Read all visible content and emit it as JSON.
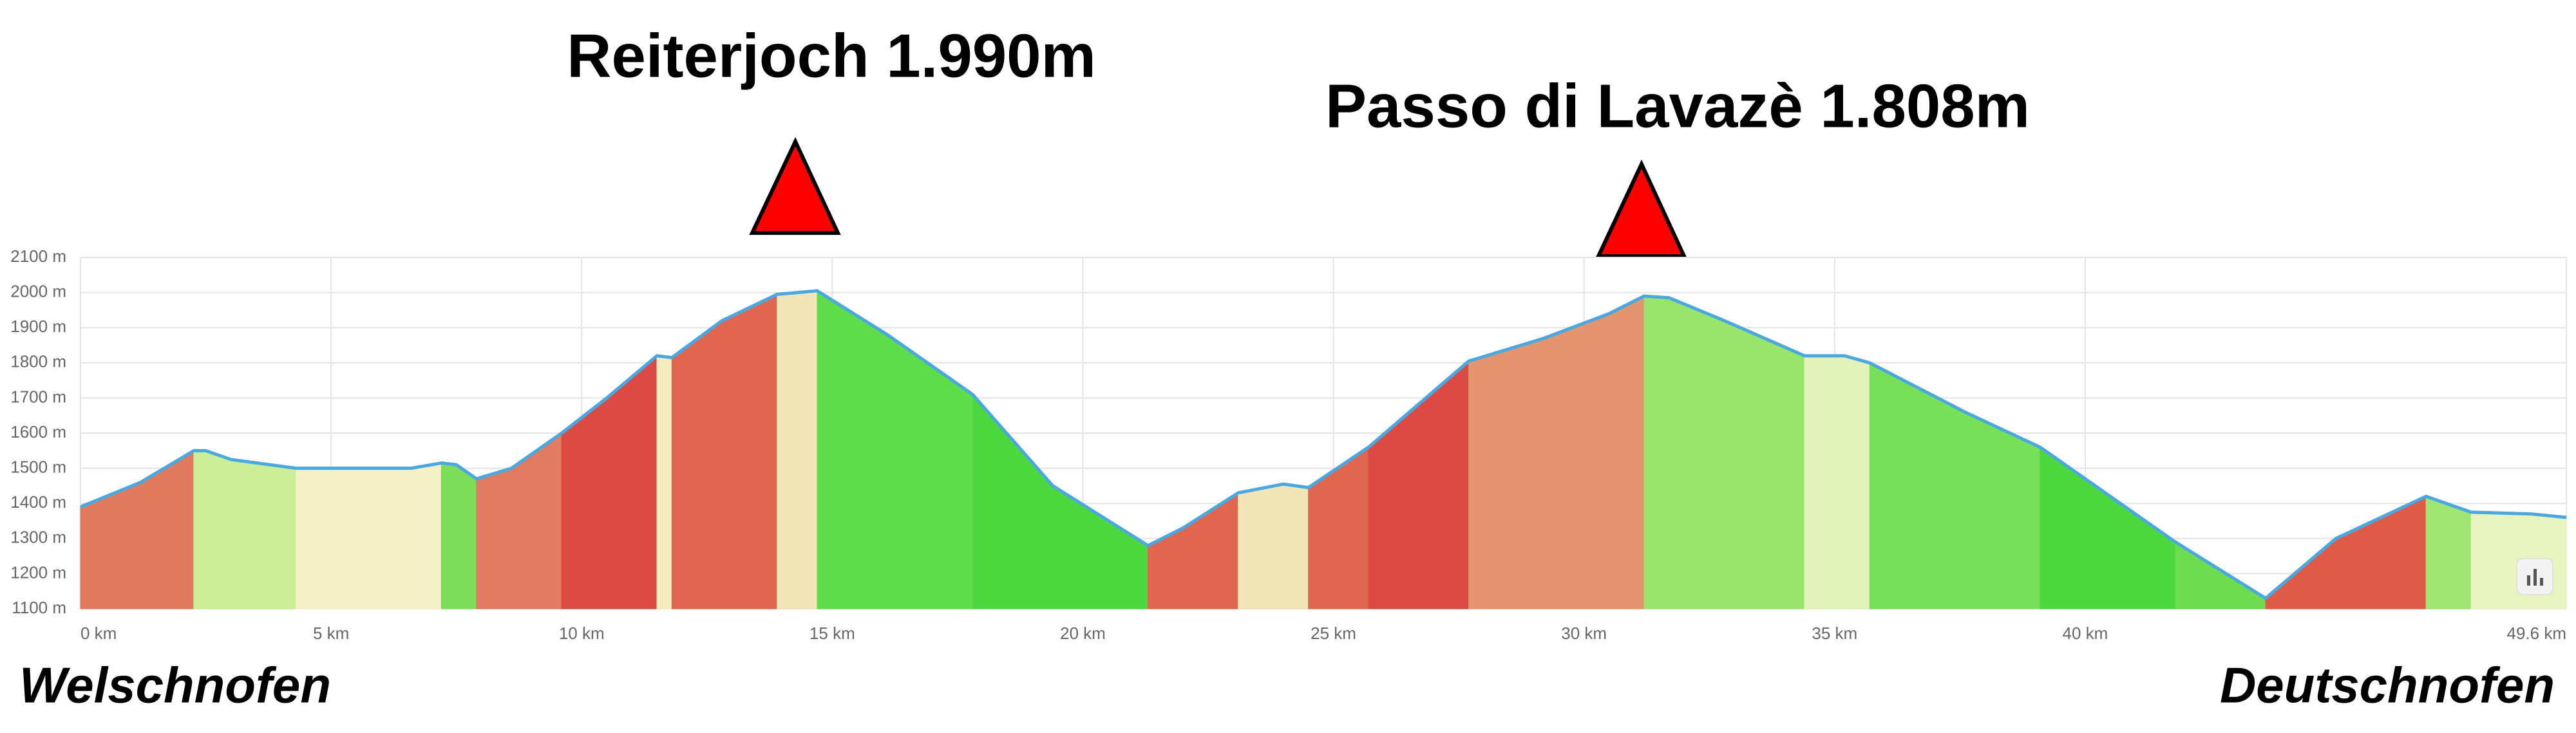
{
  "chart_data": {
    "type": "area",
    "annotations": [
      "Reiterjoch 1.990m",
      "Passo di Lavazè 1.808m"
    ],
    "start_label": "Welschnofen",
    "end_label": "Deutschnofen",
    "x": [
      0,
      1.2,
      2.26,
      2.5,
      3.0,
      4.3,
      6.6,
      7.2,
      7.5,
      7.9,
      8.6,
      9.6,
      10.5,
      11.5,
      11.8,
      12.8,
      13.9,
      14.7,
      16.1,
      17.8,
      19.4,
      21.3,
      22.0,
      23.1,
      24.0,
      24.5,
      25.7,
      27.7,
      29.2,
      30.5,
      31.2,
      31.7,
      32.8,
      34.4,
      35.2,
      35.7,
      37.6,
      39.1,
      41.8,
      43.6,
      45.0,
      46.8,
      47.7,
      48.9,
      49.6
    ],
    "values": [
      1390,
      1460,
      1550,
      1550,
      1525,
      1500,
      1500,
      1515,
      1510,
      1470,
      1500,
      1600,
      1700,
      1820,
      1815,
      1920,
      1995,
      2005,
      1880,
      1710,
      1450,
      1280,
      1330,
      1430,
      1455,
      1445,
      1560,
      1805,
      1870,
      1940,
      1990,
      1985,
      1920,
      1820,
      1820,
      1800,
      1660,
      1560,
      1290,
      1130,
      1300,
      1420,
      1375,
      1370,
      1360
    ],
    "segment_colors": [
      "#e07a5f",
      "#e07a5f",
      "#cdee98",
      "#cdee98",
      "#cdee98",
      "#f4f0c8",
      "#f4f0c8",
      "#7ddc5a",
      "#7ddc5a",
      "#e07a60",
      "#e07a60",
      "#dc4a44",
      "#dc4a44",
      "#f4ecc0",
      "#e06650",
      "#e06650",
      "#f2e6b8",
      "#5edc4a",
      "#5edc4a",
      "#4ed840",
      "#4ed840",
      "#e06650",
      "#e06650",
      "#f2e6b8",
      "#f2e6b8",
      "#e06650",
      "#dc4a44",
      "#e4946e",
      "#e4946e",
      "#e4946e",
      "#98e46c",
      "#98e46c",
      "#98e46c",
      "#e2f2b8",
      "#e2f2b8",
      "#78e058",
      "#78e058",
      "#4ed840",
      "#6edc50",
      "#e05a48",
      "#e05a48",
      "#a0e474",
      "#e8f4c0",
      "#e8f4c0"
    ],
    "line_color": "#4aa8e0",
    "xlim": [
      0,
      49.6
    ],
    "ylim": [
      1100,
      2100
    ],
    "xticks": [
      {
        "value": 0,
        "label": "0 km"
      },
      {
        "value": 5,
        "label": "5 km"
      },
      {
        "value": 10,
        "label": "10 km"
      },
      {
        "value": 15,
        "label": "15 km"
      },
      {
        "value": 20,
        "label": "20 km"
      },
      {
        "value": 25,
        "label": "25 km"
      },
      {
        "value": 30,
        "label": "30 km"
      },
      {
        "value": 35,
        "label": "35 km"
      },
      {
        "value": 40,
        "label": "40 km"
      },
      {
        "value": 49.6,
        "label": "49.6 km"
      }
    ],
    "yticks": [
      {
        "value": 1100,
        "label": "1100 m"
      },
      {
        "value": 1200,
        "label": "1200 m"
      },
      {
        "value": 1300,
        "label": "1300 m"
      },
      {
        "value": 1400,
        "label": "1400 m"
      },
      {
        "value": 1500,
        "label": "1500 m"
      },
      {
        "value": 1600,
        "label": "1600 m"
      },
      {
        "value": 1700,
        "label": "1700 m"
      },
      {
        "value": 1800,
        "label": "1800 m"
      },
      {
        "value": 1900,
        "label": "1900 m"
      },
      {
        "value": 2000,
        "label": "2000 m"
      },
      {
        "value": 2100,
        "label": "2100 m"
      }
    ],
    "grid": true
  }
}
